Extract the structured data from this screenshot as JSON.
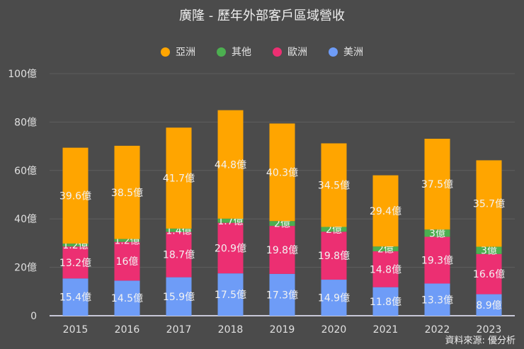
{
  "chart_data": {
    "type": "bar",
    "stacked": true,
    "title": "廣隆 - 歷年外部客戶區域營收",
    "categories": [
      "2015",
      "2016",
      "2017",
      "2018",
      "2019",
      "2020",
      "2021",
      "2022",
      "2023"
    ],
    "unit": "億",
    "series": [
      {
        "name": "美洲",
        "color": "#6e9cf7",
        "values": [
          15.4,
          14.5,
          15.9,
          17.5,
          17.3,
          14.9,
          11.8,
          13.3,
          8.9
        ]
      },
      {
        "name": "歐洲",
        "color": "#ec2f72",
        "values": [
          13.2,
          16,
          18.7,
          20.9,
          19.8,
          19.8,
          14.8,
          19.3,
          16.6
        ]
      },
      {
        "name": "其他",
        "color": "#4caf50",
        "values": [
          1.2,
          1.2,
          1.4,
          1.7,
          2,
          2,
          2,
          3,
          3
        ]
      },
      {
        "name": "亞洲",
        "color": "#ffa500",
        "values": [
          39.6,
          38.5,
          41.7,
          44.8,
          40.3,
          34.5,
          29.4,
          37.5,
          35.7
        ]
      }
    ],
    "legend_order": [
      "亞洲",
      "其他",
      "歐洲",
      "美洲"
    ],
    "ylim": [
      0,
      100
    ],
    "yticks": [
      "0",
      "20億",
      "40億",
      "60億",
      "80億",
      "100億"
    ],
    "grid": true,
    "legend_position": "top"
  },
  "source": "資料來源: 優分析"
}
